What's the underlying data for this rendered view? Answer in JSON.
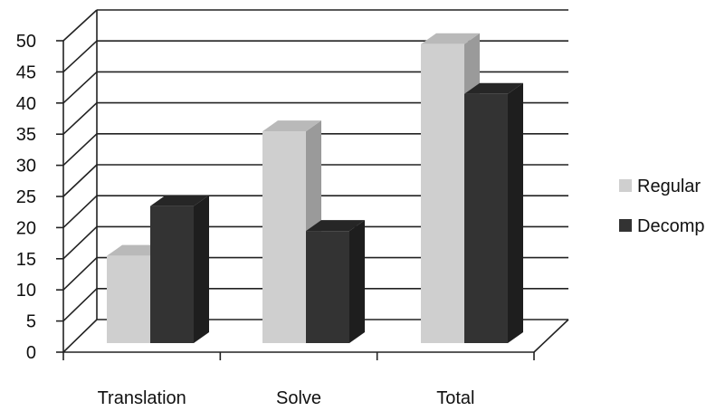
{
  "chart_data": {
    "type": "bar",
    "title": "",
    "xlabel": "",
    "ylabel": "",
    "categories": [
      "Translation",
      "Solve",
      "Total"
    ],
    "series": [
      {
        "name": "Regular",
        "values": [
          14,
          34,
          48
        ]
      },
      {
        "name": "Decomp",
        "values": [
          22,
          18,
          40
        ]
      }
    ],
    "ylim": [
      0,
      50
    ],
    "yticks": [
      0,
      5,
      10,
      15,
      20,
      25,
      30,
      35,
      40,
      45,
      50
    ],
    "grid": true,
    "legend_position": "right",
    "style": "3d-clustered-column",
    "colors": {
      "Regular": {
        "front": "#cfcfcf",
        "side": "#9a9a9a",
        "top": "#b9b9b9"
      },
      "Decomp": {
        "front": "#333333",
        "side": "#1e1e1e",
        "top": "#262626"
      },
      "grid": "#222222",
      "floor": "#444444"
    }
  }
}
